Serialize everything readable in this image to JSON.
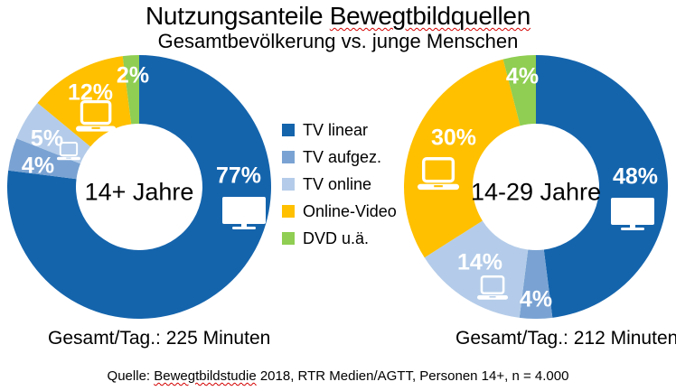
{
  "header": {
    "title_prefix": "Nutzungsanteile ",
    "title_marked": "Bewegtbildquellen",
    "subtitle": "Gesamtbevölkerung vs. junge Menschen"
  },
  "chart_data": {
    "type": "pie",
    "subtype": "donut",
    "unit": "%",
    "direction": "clockwise",
    "start_angle_deg": 0,
    "legend_position": "center-between-charts",
    "categories": [
      "TV linear",
      "TV aufgez.",
      "TV online",
      "Online-Video",
      "DVD u.ä."
    ],
    "colors": [
      "#1464AC",
      "#7AA3D3",
      "#B4CCE9",
      "#FFC000",
      "#8FCE52"
    ],
    "charts": [
      {
        "name": "Gesamtbevölkerung",
        "center_label": "14+ Jahre",
        "total_label": "Gesamt/Tag.: 225 Minuten",
        "total_minutes": 225,
        "values": [
          77,
          4,
          5,
          12,
          2
        ],
        "labels": [
          "77%",
          "4%",
          "5%",
          "12%",
          "2%"
        ]
      },
      {
        "name": "junge Menschen",
        "center_label": "14-29 Jahre",
        "total_label": "Gesamt/Tag.: 212 Minuten",
        "total_minutes": 212,
        "values": [
          48,
          4,
          14,
          30,
          4
        ],
        "labels": [
          "48%",
          "4%",
          "14%",
          "30%",
          "4%"
        ]
      }
    ]
  },
  "icons": {
    "tv": "tv-icon",
    "laptop": "laptop-icon"
  },
  "source": {
    "prefix": "Quelle: ",
    "marked": "Bewegtbildstudie",
    "suffix": " 2018, RTR Medien/AGTT, Personen 14+, n = 4.000"
  },
  "colors": {
    "spellcheck_underline": "#d40000",
    "label_text": "#ffffff",
    "text": "#000000",
    "background": "#ffffff"
  }
}
